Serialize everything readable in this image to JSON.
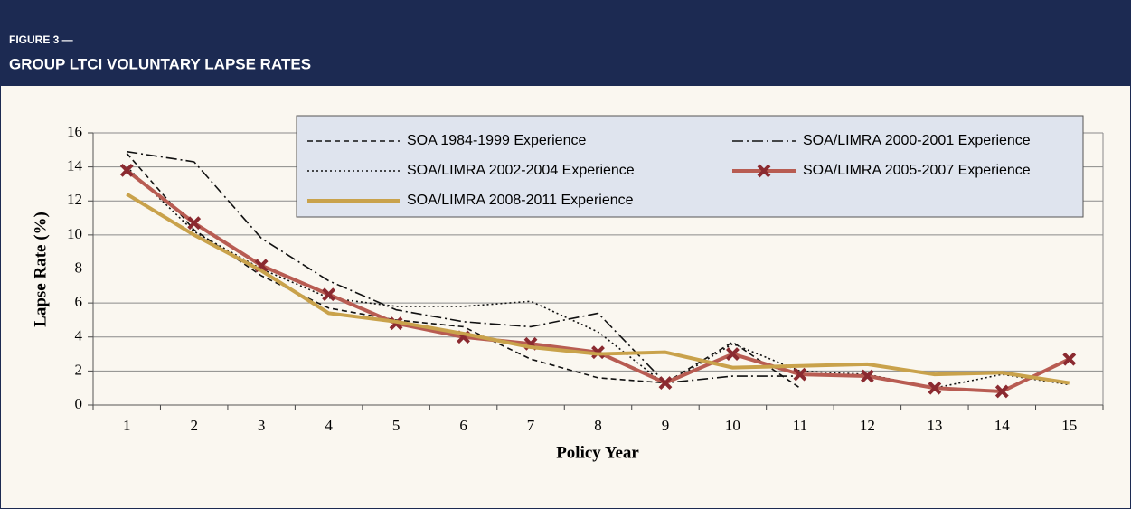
{
  "header": {
    "figure": "FIGURE 3 —",
    "title": "GROUP LTCI VOLUNTARY LAPSE RATES"
  },
  "chart_data": {
    "type": "line",
    "x_label": "Policy Year",
    "y_label": "Lapse Rate (%)",
    "categories": [
      "1",
      "2",
      "3",
      "4",
      "5",
      "6",
      "7",
      "8",
      "9",
      "10",
      "11",
      "12",
      "13",
      "14",
      "15"
    ],
    "ylim": [
      0,
      16
    ],
    "yticks": [
      0,
      2,
      4,
      6,
      8,
      10,
      12,
      14,
      16
    ],
    "grid": true,
    "series": [
      {
        "name": "SOA 1984-1999 Experience",
        "color": "#111111",
        "width": 1.6,
        "dash": "6,4",
        "values": [
          14.8,
          10.3,
          7.6,
          5.7,
          5.0,
          4.6,
          2.7,
          1.6,
          1.3,
          3.7,
          1.0,
          null,
          null,
          null,
          null
        ]
      },
      {
        "name": "SOA/LIMRA 2000-2001 Experience",
        "color": "#111111",
        "width": 1.6,
        "dash": "12,4,2,4",
        "values": [
          14.9,
          14.3,
          9.8,
          7.3,
          5.6,
          4.9,
          4.6,
          5.4,
          1.3,
          1.7,
          1.7,
          null,
          null,
          null,
          null
        ]
      },
      {
        "name": "SOA/LIMRA 2002-2004 Experience",
        "color": "#111111",
        "width": 1.6,
        "dash": "2,3",
        "values": [
          14.0,
          10.2,
          8.0,
          6.3,
          5.8,
          5.8,
          6.1,
          4.3,
          1.2,
          3.6,
          2.0,
          1.8,
          1.0,
          1.8,
          1.2
        ]
      },
      {
        "name": "SOA/LIMRA 2005-2007 Experience",
        "color": "#b85c52",
        "width": 4,
        "marker": "x",
        "marker_color": "#8b2a30",
        "values": [
          13.8,
          10.7,
          8.2,
          6.5,
          4.8,
          4.0,
          3.6,
          3.1,
          1.3,
          3.0,
          1.8,
          1.7,
          1.0,
          0.8,
          2.7
        ]
      },
      {
        "name": "SOA/LIMRA 2008-2011 Experience",
        "color": "#c9a24b",
        "width": 4,
        "values": [
          12.4,
          10.0,
          7.9,
          5.4,
          4.9,
          4.2,
          3.4,
          3.0,
          3.1,
          2.2,
          2.3,
          2.4,
          1.8,
          1.9,
          1.3
        ]
      }
    ]
  }
}
